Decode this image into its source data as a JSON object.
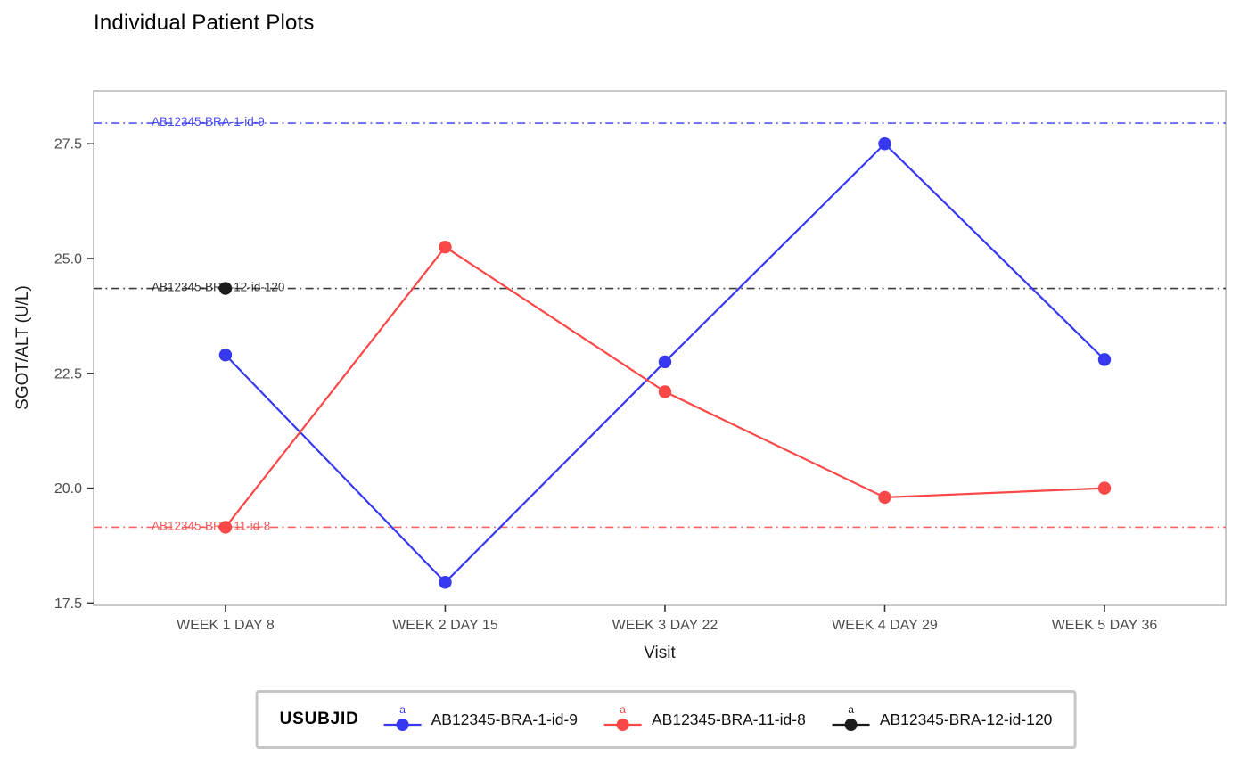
{
  "chart_data": {
    "type": "line",
    "title": "Individual Patient Plots",
    "xlabel": "Visit",
    "ylabel": "SGOT/ALT (U/L)",
    "categories": [
      "WEEK 1 DAY 8",
      "WEEK 2 DAY 15",
      "WEEK 3 DAY 22",
      "WEEK 4 DAY 29",
      "WEEK 5 DAY 36"
    ],
    "yticks": [
      "17.5",
      "20.0",
      "22.5",
      "25.0",
      "27.5"
    ],
    "ylim": [
      17.45,
      28.65
    ],
    "grid": false,
    "panel_border_color": "#c9c9c9",
    "legend": {
      "title": "USUBJID",
      "position": "bottom",
      "marker_letter": "a"
    },
    "series": [
      {
        "name": "AB12345-BRA-1-id-9",
        "color": "#3639f0",
        "values": [
          22.9,
          17.95,
          22.75,
          27.5,
          22.8
        ],
        "ref_line": {
          "value": 27.95,
          "label": "AB12345-BRA-1-id-9"
        }
      },
      {
        "name": "AB12345-BRA-11-id-8",
        "color": "#fa4848",
        "values": [
          19.15,
          25.25,
          22.1,
          19.8,
          20.0
        ],
        "ref_line": {
          "value": 19.15,
          "label": "AB12345-BRA-11-id-8"
        }
      },
      {
        "name": "AB12345-BRA-12-id-120",
        "color": "#1c1c1c",
        "values": [
          24.35,
          null,
          null,
          null,
          null
        ],
        "ref_line": {
          "value": 24.35,
          "label": "AB12345-BRA-12-id-120"
        }
      }
    ]
  }
}
